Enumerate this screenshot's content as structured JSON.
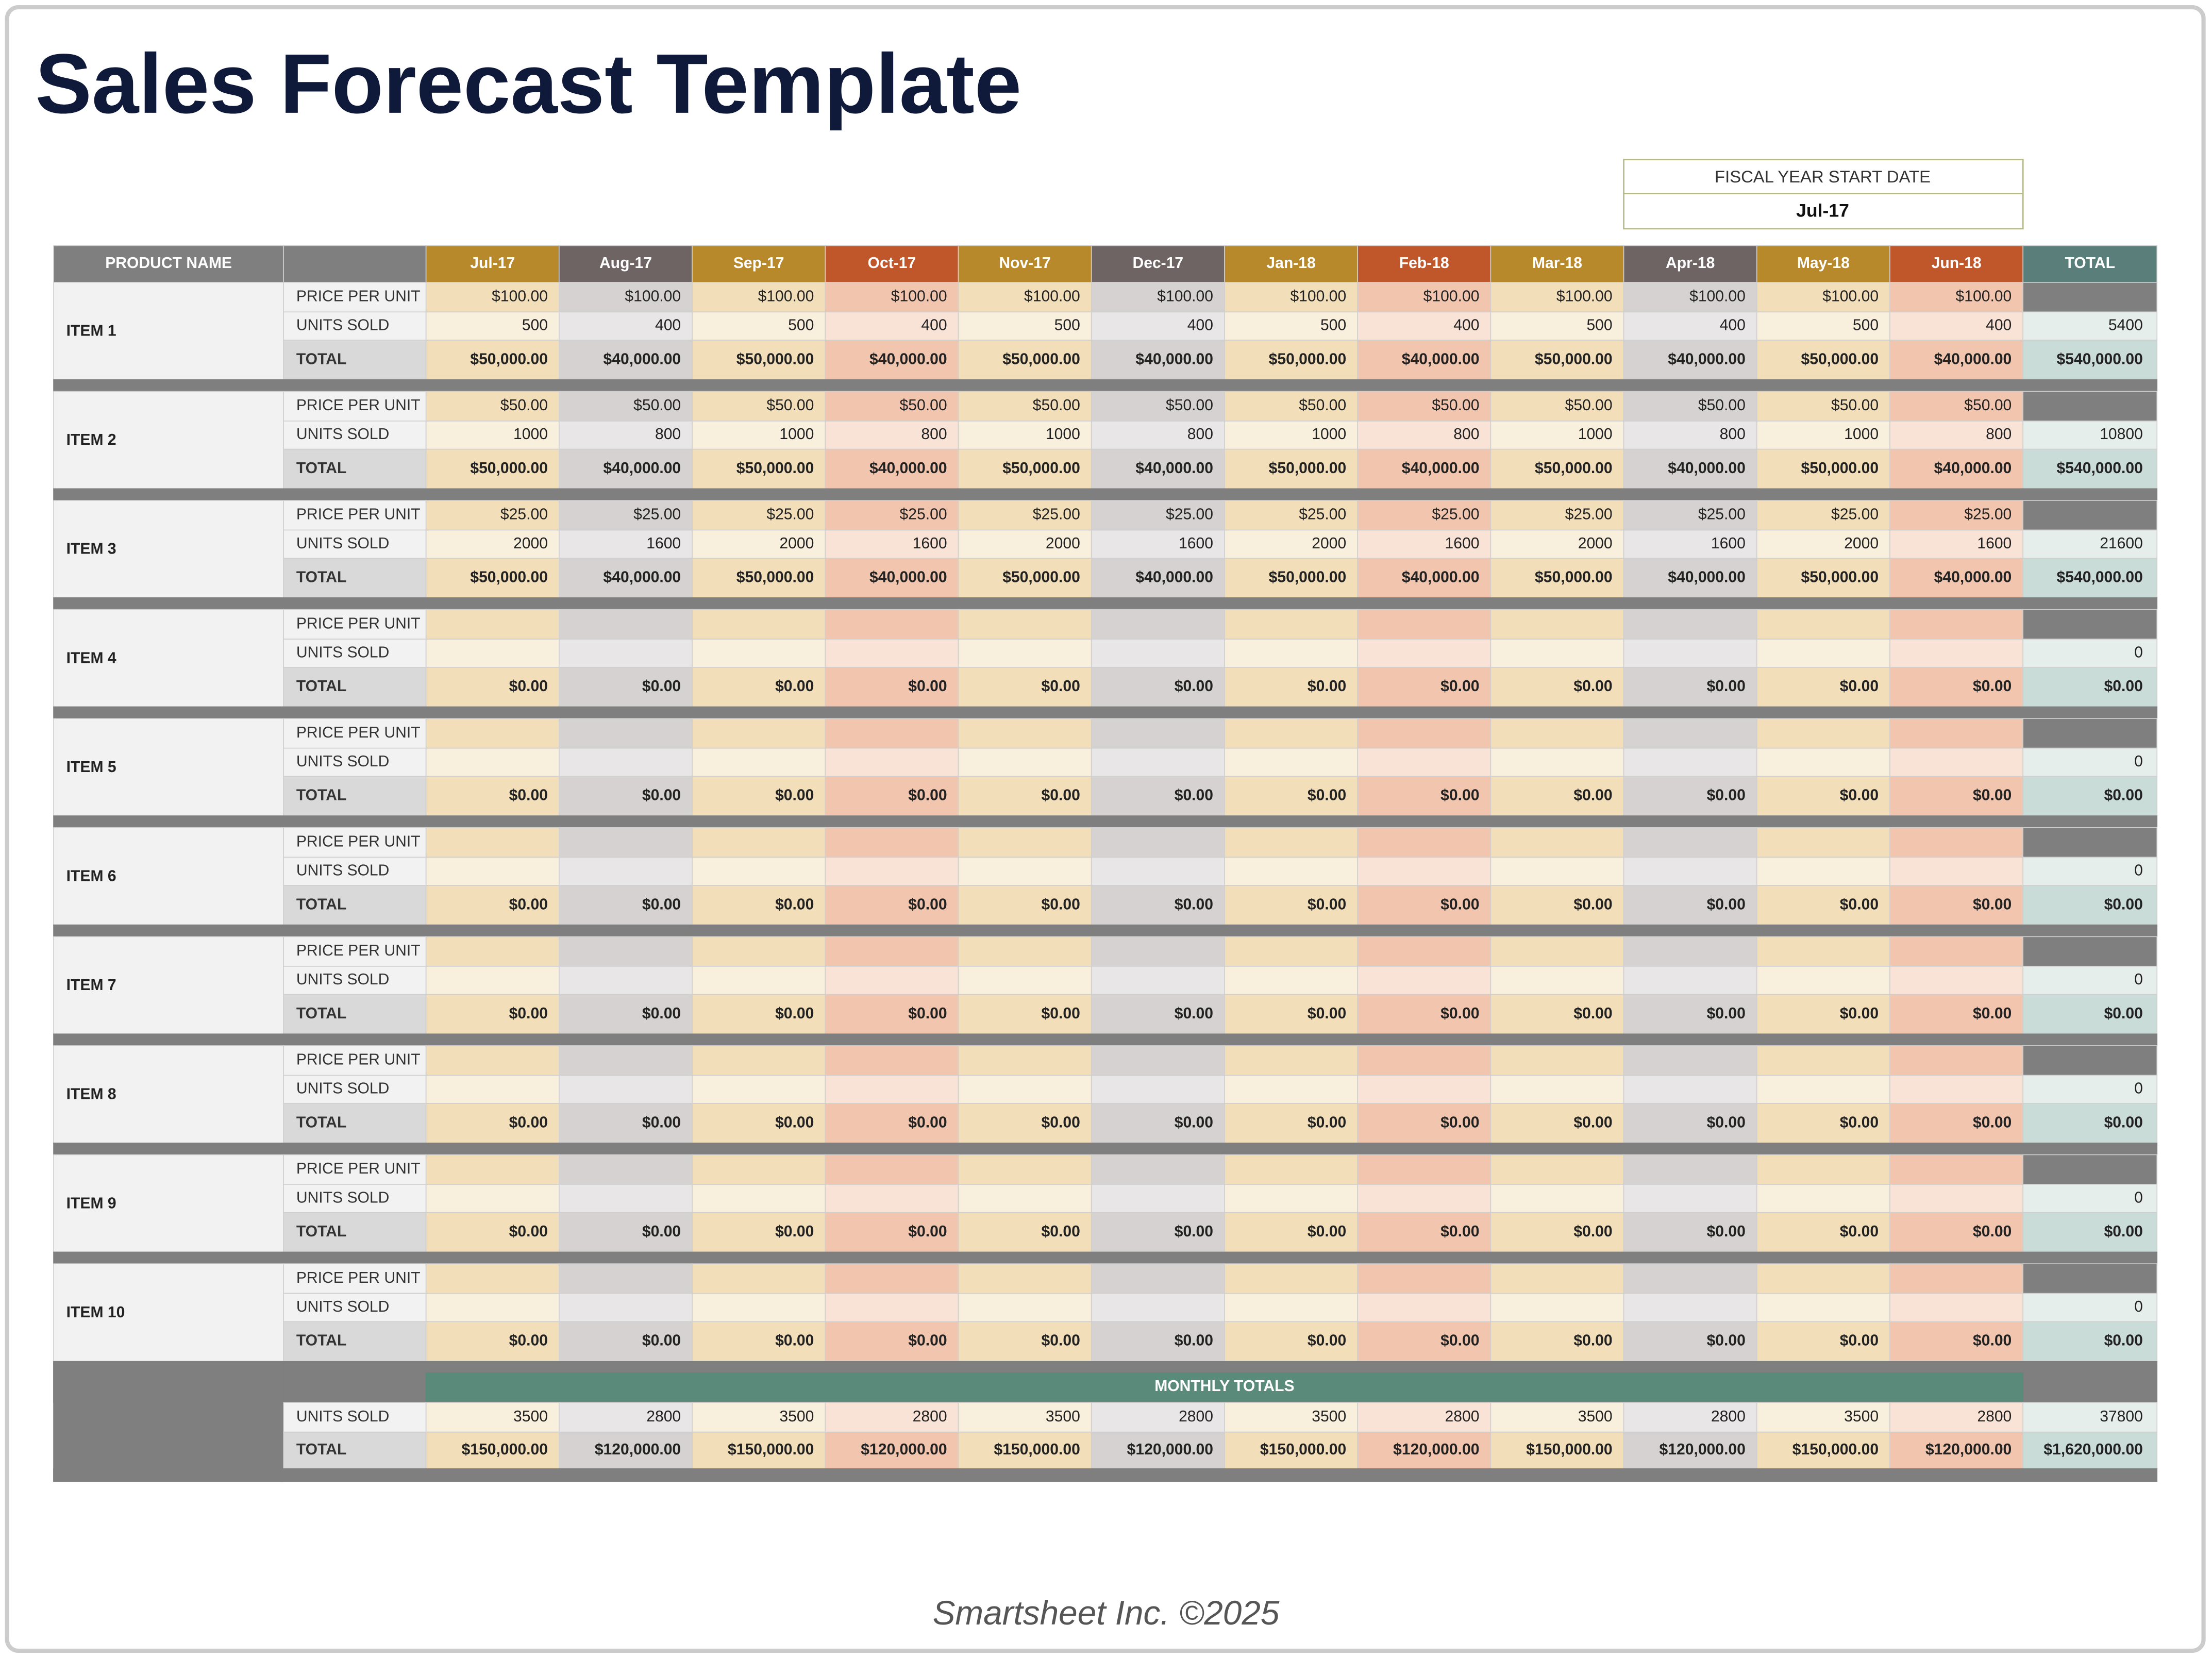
{
  "header": {
    "title": "Sales Forecast Template",
    "fiscal_label": "FISCAL YEAR START DATE",
    "fiscal_value": "Jul-17"
  },
  "table": {
    "product_header": "PRODUCT NAME",
    "total_header": "TOTAL",
    "months": [
      "Jul-17",
      "Aug-17",
      "Sep-17",
      "Oct-17",
      "Nov-17",
      "Dec-17",
      "Jan-18",
      "Feb-18",
      "Mar-18",
      "Apr-18",
      "May-18",
      "Jun-18"
    ],
    "row_labels": [
      "PRICE PER UNIT",
      "UNITS SOLD",
      "TOTAL"
    ],
    "items": [
      {
        "name": "ITEM 1",
        "prices": [
          "$100.00",
          "$100.00",
          "$100.00",
          "$100.00",
          "$100.00",
          "$100.00",
          "$100.00",
          "$100.00",
          "$100.00",
          "$100.00",
          "$100.00",
          "$100.00"
        ],
        "units": [
          500,
          400,
          500,
          400,
          500,
          400,
          500,
          400,
          500,
          400,
          500,
          400
        ],
        "totals": [
          "$50,000.00",
          "$40,000.00",
          "$50,000.00",
          "$40,000.00",
          "$50,000.00",
          "$40,000.00",
          "$50,000.00",
          "$40,000.00",
          "$50,000.00",
          "$40,000.00",
          "$50,000.00",
          "$40,000.00"
        ],
        "units_total": 5400,
        "total": "$540,000.00"
      },
      {
        "name": "ITEM 2",
        "prices": [
          "$50.00",
          "$50.00",
          "$50.00",
          "$50.00",
          "$50.00",
          "$50.00",
          "$50.00",
          "$50.00",
          "$50.00",
          "$50.00",
          "$50.00",
          "$50.00"
        ],
        "units": [
          1000,
          800,
          1000,
          800,
          1000,
          800,
          1000,
          800,
          1000,
          800,
          1000,
          800
        ],
        "totals": [
          "$50,000.00",
          "$40,000.00",
          "$50,000.00",
          "$40,000.00",
          "$50,000.00",
          "$40,000.00",
          "$50,000.00",
          "$40,000.00",
          "$50,000.00",
          "$40,000.00",
          "$50,000.00",
          "$40,000.00"
        ],
        "units_total": 10800,
        "total": "$540,000.00"
      },
      {
        "name": "ITEM 3",
        "prices": [
          "$25.00",
          "$25.00",
          "$25.00",
          "$25.00",
          "$25.00",
          "$25.00",
          "$25.00",
          "$25.00",
          "$25.00",
          "$25.00",
          "$25.00",
          "$25.00"
        ],
        "units": [
          2000,
          1600,
          2000,
          1600,
          2000,
          1600,
          2000,
          1600,
          2000,
          1600,
          2000,
          1600
        ],
        "totals": [
          "$50,000.00",
          "$40,000.00",
          "$50,000.00",
          "$40,000.00",
          "$50,000.00",
          "$40,000.00",
          "$50,000.00",
          "$40,000.00",
          "$50,000.00",
          "$40,000.00",
          "$50,000.00",
          "$40,000.00"
        ],
        "units_total": 21600,
        "total": "$540,000.00"
      },
      {
        "name": "ITEM 4",
        "totals": [
          "$0.00",
          "$0.00",
          "$0.00",
          "$0.00",
          "$0.00",
          "$0.00",
          "$0.00",
          "$0.00",
          "$0.00",
          "$0.00",
          "$0.00",
          "$0.00"
        ],
        "units_total": 0,
        "total": "$0.00"
      },
      {
        "name": "ITEM 5",
        "totals": [
          "$0.00",
          "$0.00",
          "$0.00",
          "$0.00",
          "$0.00",
          "$0.00",
          "$0.00",
          "$0.00",
          "$0.00",
          "$0.00",
          "$0.00",
          "$0.00"
        ],
        "units_total": 0,
        "total": "$0.00"
      },
      {
        "name": "ITEM 6",
        "totals": [
          "$0.00",
          "$0.00",
          "$0.00",
          "$0.00",
          "$0.00",
          "$0.00",
          "$0.00",
          "$0.00",
          "$0.00",
          "$0.00",
          "$0.00",
          "$0.00"
        ],
        "units_total": 0,
        "total": "$0.00"
      },
      {
        "name": "ITEM 7",
        "totals": [
          "$0.00",
          "$0.00",
          "$0.00",
          "$0.00",
          "$0.00",
          "$0.00",
          "$0.00",
          "$0.00",
          "$0.00",
          "$0.00",
          "$0.00",
          "$0.00"
        ],
        "units_total": 0,
        "total": "$0.00"
      },
      {
        "name": "ITEM 8",
        "totals": [
          "$0.00",
          "$0.00",
          "$0.00",
          "$0.00",
          "$0.00",
          "$0.00",
          "$0.00",
          "$0.00",
          "$0.00",
          "$0.00",
          "$0.00",
          "$0.00"
        ],
        "units_total": 0,
        "total": "$0.00"
      },
      {
        "name": "ITEM 9",
        "totals": [
          "$0.00",
          "$0.00",
          "$0.00",
          "$0.00",
          "$0.00",
          "$0.00",
          "$0.00",
          "$0.00",
          "$0.00",
          "$0.00",
          "$0.00",
          "$0.00"
        ],
        "units_total": 0,
        "total": "$0.00"
      },
      {
        "name": "ITEM 10",
        "totals": [
          "$0.00",
          "$0.00",
          "$0.00",
          "$0.00",
          "$0.00",
          "$0.00",
          "$0.00",
          "$0.00",
          "$0.00",
          "$0.00",
          "$0.00",
          "$0.00"
        ],
        "units_total": 0,
        "total": "$0.00"
      }
    ],
    "monthly": {
      "label": "MONTHLY TOTALS",
      "units_label": "UNITS SOLD",
      "total_label": "TOTAL",
      "units": [
        3500,
        2800,
        3500,
        2800,
        3500,
        2800,
        3500,
        2800,
        3500,
        2800,
        3500,
        2800
      ],
      "units_total": 37800,
      "totals": [
        "$150,000.00",
        "$120,000.00",
        "$150,000.00",
        "$120,000.00",
        "$150,000.00",
        "$120,000.00",
        "$150,000.00",
        "$120,000.00",
        "$150,000.00",
        "$120,000.00",
        "$150,000.00",
        "$120,000.00"
      ],
      "total": "$1,620,000.00"
    }
  },
  "footer": "Smartsheet Inc. ©2025"
}
